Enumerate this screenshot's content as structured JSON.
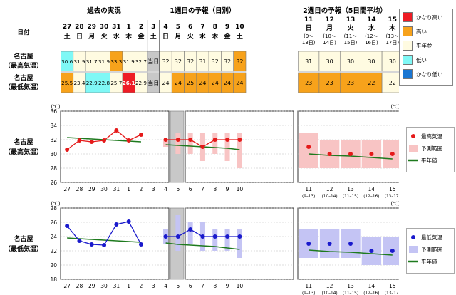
{
  "header": {
    "past_title": "過去の実況",
    "week1_title": "1週目の予報（日別）",
    "week2_title": "2週目の予報（5日間平均）",
    "date_label": "日付"
  },
  "rows": {
    "max_label_1": "名古屋",
    "max_label_2": "（最高気温）",
    "min_label_1": "名古屋",
    "min_label_2": "（最低気温）"
  },
  "dates": [
    {
      "day": "27",
      "dow": "土"
    },
    {
      "day": "28",
      "dow": "日"
    },
    {
      "day": "29",
      "dow": "月"
    },
    {
      "day": "30",
      "dow": "火"
    },
    {
      "day": "31",
      "dow": "水"
    },
    {
      "day": "1",
      "dow": "木"
    },
    {
      "day": "2",
      "dow": "金"
    },
    {
      "day": "3",
      "dow": "土"
    },
    {
      "day": "4",
      "dow": "日"
    },
    {
      "day": "5",
      "dow": "月"
    },
    {
      "day": "6",
      "dow": "火"
    },
    {
      "day": "7",
      "dow": "水"
    },
    {
      "day": "8",
      "dow": "木"
    },
    {
      "day": "9",
      "dow": "金"
    },
    {
      "day": "10",
      "dow": "土"
    }
  ],
  "week2_dates": [
    {
      "day": "11",
      "dow": "日",
      "range_1": "(9～",
      "range_2": "13日)"
    },
    {
      "day": "12",
      "dow": "月",
      "range_1": "(10～",
      "range_2": "14日)"
    },
    {
      "day": "13",
      "dow": "火",
      "range_1": "(11～",
      "range_2": "15日)"
    },
    {
      "day": "14",
      "dow": "水",
      "range_1": "(12～",
      "range_2": "16日)"
    },
    {
      "day": "15",
      "dow": "木",
      "range_1": "(13～",
      "range_2": "17日)"
    }
  ],
  "table": {
    "max_cells": [
      {
        "text": "30.6",
        "cls": "low"
      },
      {
        "text": "31.9",
        "cls": "normal"
      },
      {
        "text": "31.7",
        "cls": "normal"
      },
      {
        "text": "31.9",
        "cls": "normal"
      },
      {
        "text": "33.3",
        "cls": "high"
      },
      {
        "text": "31.9",
        "cls": "normal"
      },
      {
        "text": "32.7",
        "cls": "normal"
      },
      {
        "text": "当日",
        "cls": "today"
      },
      {
        "text": "32",
        "cls": "normal"
      },
      {
        "text": "32",
        "cls": "normal"
      },
      {
        "text": "32",
        "cls": "normal"
      },
      {
        "text": "31",
        "cls": "normal"
      },
      {
        "text": "32",
        "cls": "normal"
      },
      {
        "text": "32",
        "cls": "normal"
      },
      {
        "text": "32",
        "cls": "high"
      }
    ],
    "min_cells": [
      {
        "text": "25.5",
        "cls": "high"
      },
      {
        "text": "23.4",
        "cls": "normal"
      },
      {
        "text": "22.9",
        "cls": "low"
      },
      {
        "text": "22.8",
        "cls": "low"
      },
      {
        "text": "25.7",
        "cls": "normal"
      },
      {
        "text": "26.1",
        "cls": "vhigh"
      },
      {
        "text": "22.9",
        "cls": "normal"
      },
      {
        "text": "当日",
        "cls": "today"
      },
      {
        "text": "24",
        "cls": "normal"
      },
      {
        "text": "24",
        "cls": "high"
      },
      {
        "text": "25",
        "cls": "high"
      },
      {
        "text": "24",
        "cls": "high"
      },
      {
        "text": "24",
        "cls": "high"
      },
      {
        "text": "24",
        "cls": "high"
      },
      {
        "text": "24",
        "cls": "high"
      }
    ],
    "week2_max": [
      {
        "text": "31",
        "cls": "normal"
      },
      {
        "text": "30",
        "cls": "normal"
      },
      {
        "text": "30",
        "cls": "normal"
      },
      {
        "text": "30",
        "cls": "normal"
      },
      {
        "text": "30",
        "cls": "normal"
      }
    ],
    "week2_min": [
      {
        "text": "23",
        "cls": "high"
      },
      {
        "text": "23",
        "cls": "high"
      },
      {
        "text": "23",
        "cls": "high"
      },
      {
        "text": "22",
        "cls": "high"
      },
      {
        "text": "22",
        "cls": "normal"
      }
    ]
  },
  "colors": {
    "vhigh": "#ee1c25",
    "high": "#f7a21b",
    "normal": "#fffbe1",
    "low": "#7ff8f6",
    "vlow": "#1a76d2",
    "today": "#c8c8c8",
    "max_marker": "#e51a1a",
    "max_range": "#f8c4c4",
    "min_marker": "#1a1acc",
    "min_range": "#c4c4f4",
    "normal_line": "#1e7a1e"
  },
  "legend_top": [
    {
      "label": "かなり高い",
      "color_key": "vhigh"
    },
    {
      "label": "高い",
      "color_key": "high"
    },
    {
      "label": "平年並",
      "color_key": "normal"
    },
    {
      "label": "低い",
      "color_key": "low"
    },
    {
      "label": "かなり低い",
      "color_key": "vlow"
    }
  ],
  "chart_data": [
    {
      "type": "line",
      "row_label_1": "名古屋",
      "row_label_2": "（最高気温）",
      "unit": "(℃)",
      "ylim": [
        26,
        36
      ],
      "yticks": [
        26,
        28,
        30,
        32,
        34,
        36
      ],
      "x_daily": [
        "27",
        "28",
        "29",
        "30",
        "31",
        "1",
        "2",
        "3",
        "4",
        "5",
        "6",
        "7",
        "8",
        "9",
        "10"
      ],
      "x_week2": [
        "11",
        "12",
        "13",
        "14",
        "15"
      ],
      "x_week2_ranges": [
        "(9–13)",
        "(10–14)",
        "(11–15)",
        "(12–16)",
        "(13–17)"
      ],
      "observed": [
        30.6,
        31.9,
        31.7,
        31.9,
        33.3,
        31.9,
        32.7
      ],
      "forecast": [
        32,
        32,
        32,
        31,
        32,
        32,
        32
      ],
      "forecast_range": [
        [
          31,
          32
        ],
        [
          30,
          33
        ],
        [
          30,
          33
        ],
        [
          29,
          33
        ],
        [
          30,
          33
        ],
        [
          29,
          33
        ],
        [
          28,
          33
        ]
      ],
      "week2_forecast": [
        31,
        30,
        30,
        30,
        30
      ],
      "week2_range": [
        [
          28,
          33
        ],
        [
          28,
          32
        ],
        [
          28,
          32
        ],
        [
          28,
          32
        ],
        [
          28,
          32
        ]
      ],
      "normal_daily": [
        32.3,
        32.2,
        32.1,
        32.0,
        31.9,
        31.8,
        31.7,
        null,
        31.3,
        31.2,
        31.1,
        31.0,
        30.9,
        30.8,
        30.6
      ],
      "normal_week2": [
        30.0,
        29.8,
        29.7,
        29.5,
        29.3
      ],
      "legend": [
        {
          "label": "最高気温",
          "kind": "marker"
        },
        {
          "label": "予測範囲",
          "kind": "range"
        },
        {
          "label": "平年値",
          "kind": "line"
        }
      ]
    },
    {
      "type": "line",
      "row_label_1": "名古屋",
      "row_label_2": "（最低気温）",
      "unit": "(℃)",
      "ylim": [
        18,
        28
      ],
      "yticks": [
        18,
        20,
        22,
        24,
        26,
        28
      ],
      "x_daily": [
        "27",
        "28",
        "29",
        "30",
        "31",
        "1",
        "2",
        "3",
        "4",
        "5",
        "6",
        "7",
        "8",
        "9",
        "10"
      ],
      "x_week2": [
        "11",
        "12",
        "13",
        "14",
        "15"
      ],
      "x_week2_ranges": [
        "(9–13)",
        "(10–14)",
        "(11–15)",
        "(12–16)",
        "(13–17)"
      ],
      "observed": [
        25.5,
        23.4,
        22.9,
        22.8,
        25.7,
        26.1,
        22.9
      ],
      "forecast": [
        24,
        24,
        25,
        24,
        24,
        24,
        24
      ],
      "forecast_range": [
        [
          23,
          25
        ],
        [
          22,
          27
        ],
        [
          23,
          26
        ],
        [
          22,
          26
        ],
        [
          22,
          25
        ],
        [
          22,
          25
        ],
        [
          21,
          25
        ]
      ],
      "week2_forecast": [
        23,
        23,
        23,
        22,
        22
      ],
      "week2_range": [
        [
          21,
          25
        ],
        [
          21,
          25
        ],
        [
          21,
          25
        ],
        [
          20,
          24
        ],
        [
          20,
          24
        ]
      ],
      "normal_daily": [
        23.8,
        23.7,
        23.6,
        23.5,
        23.4,
        23.3,
        23.2,
        null,
        23.1,
        22.9,
        22.8,
        22.7,
        22.6,
        22.4,
        22.2
      ],
      "normal_week2": [
        22.1,
        21.9,
        21.8,
        21.6,
        21.4
      ],
      "legend": [
        {
          "label": "最低気温",
          "kind": "marker"
        },
        {
          "label": "予測範囲",
          "kind": "range"
        },
        {
          "label": "平年値",
          "kind": "line"
        }
      ]
    }
  ]
}
